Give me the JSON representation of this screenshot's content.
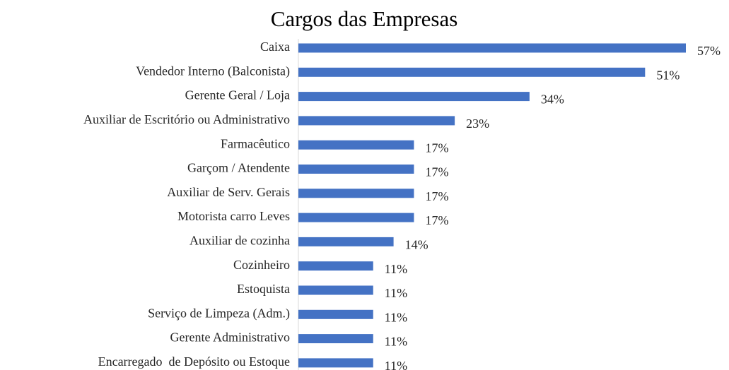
{
  "chart_data": {
    "type": "bar",
    "orientation": "horizontal",
    "title": "Cargos das Empresas",
    "categories": [
      "Caixa",
      "Vendedor Interno (Balconista)",
      "Gerente Geral / Loja",
      "Auxiliar de Escritório ou Administrativo",
      "Farmacêutico",
      "Garçom / Atendente",
      "Auxiliar de Serv. Gerais",
      "Motorista carro Leves",
      "Auxiliar de cozinha",
      "Cozinheiro",
      "Estoquista",
      "Serviço de Limpeza (Adm.)",
      "Gerente Administrativo",
      "Encarregado  de Depósito ou Estoque"
    ],
    "values": [
      57,
      51,
      34,
      23,
      17,
      17,
      17,
      17,
      14,
      11,
      11,
      11,
      11,
      11
    ],
    "value_labels": [
      "57%",
      "51%",
      "34%",
      "23%",
      "17%",
      "17%",
      "17%",
      "17%",
      "14%",
      "11%",
      "11%",
      "11%",
      "11%",
      "11%"
    ],
    "color": "#4472c4"
  }
}
